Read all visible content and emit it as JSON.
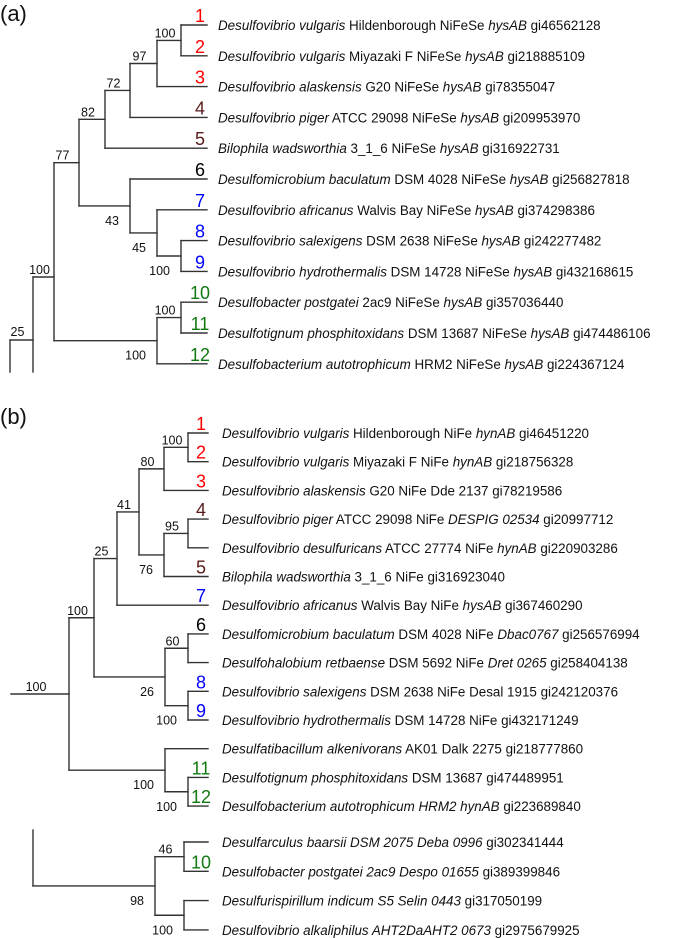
{
  "colors": {
    "red": "#ff0000",
    "brown": "#5a1a1a",
    "blue": "#0000ff",
    "green": "#127812",
    "black": "#000000",
    "branch": "#333333"
  },
  "panels": [
    {
      "label": "(a)",
      "bootstraps": [
        "100",
        "97",
        "72",
        "82",
        "77",
        "43",
        "45",
        "100",
        "100",
        "100",
        "100",
        "25"
      ],
      "leaves": [
        {
          "tag": "1",
          "tag_color": "red",
          "segments": [
            {
              "text": "Desulfovibrio vulgaris",
              "italic": true
            },
            {
              "text": " Hildenborough NiFeSe "
            },
            {
              "text": "hysAB",
              "italic": true
            },
            {
              "text": " gi46562128"
            }
          ]
        },
        {
          "tag": "2",
          "tag_color": "red",
          "segments": [
            {
              "text": "Desulfovibrio vulgaris",
              "italic": true
            },
            {
              "text": " Miyazaki F NiFeSe "
            },
            {
              "text": "hysAB",
              "italic": true
            },
            {
              "text": " gi218885109"
            }
          ]
        },
        {
          "tag": "3",
          "tag_color": "red",
          "segments": [
            {
              "text": "Desulfovibrio alaskensis",
              "italic": true
            },
            {
              "text": " G20 NiFeSe "
            },
            {
              "text": "hysAB",
              "italic": true
            },
            {
              "text": " gi78355047"
            }
          ]
        },
        {
          "tag": "4",
          "tag_color": "brown",
          "segments": [
            {
              "text": "Desulfovibrio piger",
              "italic": true
            },
            {
              "text": " ATCC 29098 NiFeSe "
            },
            {
              "text": "hysAB",
              "italic": true
            },
            {
              "text": " gi209953970"
            }
          ]
        },
        {
          "tag": "5",
          "tag_color": "brown",
          "segments": [
            {
              "text": "Bilophila wadsworthia",
              "italic": true
            },
            {
              "text": " 3_1_6 NiFeSe "
            },
            {
              "text": "hysAB",
              "italic": true
            },
            {
              "text": " gi316922731"
            }
          ]
        },
        {
          "tag": "6",
          "tag_color": "black",
          "segments": [
            {
              "text": "Desulfomicrobium baculatum",
              "italic": true
            },
            {
              "text": " DSM 4028 NiFeSe "
            },
            {
              "text": "hysAB",
              "italic": true
            },
            {
              "text": " gi256827818"
            }
          ]
        },
        {
          "tag": "7",
          "tag_color": "blue",
          "segments": [
            {
              "text": "Desulfovibrio africanus",
              "italic": true
            },
            {
              "text": " Walvis Bay NiFeSe "
            },
            {
              "text": "hysAB",
              "italic": true
            },
            {
              "text": " gi374298386"
            }
          ]
        },
        {
          "tag": "8",
          "tag_color": "blue",
          "segments": [
            {
              "text": "Desulfovibrio salexigens",
              "italic": true
            },
            {
              "text": " DSM 2638 NiFeSe "
            },
            {
              "text": "hysAB",
              "italic": true
            },
            {
              "text": " gi242277482"
            }
          ]
        },
        {
          "tag": "9",
          "tag_color": "blue",
          "segments": [
            {
              "text": "Desulfovibrio hydrothermalis",
              "italic": true
            },
            {
              "text": " DSM 14728 NiFeSe "
            },
            {
              "text": "hysAB",
              "italic": true
            },
            {
              "text": " gi432168615"
            }
          ]
        },
        {
          "tag": "10",
          "tag_color": "green",
          "segments": [
            {
              "text": "Desulfobacter postgatei",
              "italic": true
            },
            {
              "text": " 2ac9 NiFeSe "
            },
            {
              "text": "hysAB",
              "italic": true
            },
            {
              "text": " gi357036440"
            }
          ]
        },
        {
          "tag": "11",
          "tag_color": "green",
          "segments": [
            {
              "text": "Desulfotignum phosphitoxidans",
              "italic": true
            },
            {
              "text": " DSM 13687 NiFeSe "
            },
            {
              "text": "hysAB",
              "italic": true
            },
            {
              "text": " gi474486106"
            }
          ]
        },
        {
          "tag": "12",
          "tag_color": "green",
          "segments": [
            {
              "text": "Desulfobacterium autotrophicum",
              "italic": true
            },
            {
              "text": " HRM2 NiFeSe "
            },
            {
              "text": "hysAB",
              "italic": true
            },
            {
              "text": " gi224367124"
            }
          ]
        }
      ]
    },
    {
      "label": "(b)",
      "bootstraps": [
        "100",
        "80",
        "41",
        "25",
        "100",
        "95",
        "76",
        "60",
        "26",
        "100",
        "100",
        "100",
        "100",
        "46",
        "98",
        "100"
      ],
      "leaves": [
        {
          "tag": "1",
          "tag_color": "red",
          "segments": [
            {
              "text": "Desulfovibrio vulgaris",
              "italic": true
            },
            {
              "text": " Hildenborough NiFe "
            },
            {
              "text": "hynAB",
              "italic": true
            },
            {
              "text": " gi46451220"
            }
          ]
        },
        {
          "tag": "2",
          "tag_color": "red",
          "segments": [
            {
              "text": "Desulfovibrio vulgaris",
              "italic": true
            },
            {
              "text": " Miyazaki F NiFe "
            },
            {
              "text": "hynAB",
              "italic": true
            },
            {
              "text": " gi218756328"
            }
          ]
        },
        {
          "tag": "3",
          "tag_color": "red",
          "segments": [
            {
              "text": "Desulfovibrio alaskensis",
              "italic": true
            },
            {
              "text": " G20 NiFe Dde 2137 gi78219586"
            }
          ]
        },
        {
          "tag": "4",
          "tag_color": "brown",
          "segments": [
            {
              "text": "Desulfovibrio piger",
              "italic": true
            },
            {
              "text": " ATCC 29098 NiFe "
            },
            {
              "text": "DESPIG 02534",
              "italic": true
            },
            {
              "text": " gi20997712"
            }
          ]
        },
        {
          "tag": "",
          "tag_color": "black",
          "segments": [
            {
              "text": "Desulfovibrio desulfuricans",
              "italic": true
            },
            {
              "text": " ATCC 27774 NiFe "
            },
            {
              "text": "hynAB",
              "italic": true
            },
            {
              "text": " gi220903286"
            }
          ]
        },
        {
          "tag": "5",
          "tag_color": "brown",
          "segments": [
            {
              "text": "Bilophila wadsworthia",
              "italic": true
            },
            {
              "text": " 3_1_6 NiFe gi316923040"
            }
          ]
        },
        {
          "tag": "7",
          "tag_color": "blue",
          "segments": [
            {
              "text": "Desulfovibrio africanus",
              "italic": true
            },
            {
              "text": " Walvis Bay NiFe "
            },
            {
              "text": "hysAB",
              "italic": true
            },
            {
              "text": " gi367460290"
            }
          ]
        },
        {
          "tag": "6",
          "tag_color": "black",
          "segments": [
            {
              "text": "Desulfomicrobium baculatum",
              "italic": true
            },
            {
              "text": " DSM 4028 NiFe "
            },
            {
              "text": "Dbac0767",
              "italic": true
            },
            {
              "text": " gi256576994"
            }
          ]
        },
        {
          "tag": "",
          "tag_color": "black",
          "segments": [
            {
              "text": "Desulfohalobium retbaense",
              "italic": true
            },
            {
              "text": " DSM 5692 NiFe "
            },
            {
              "text": "Dret 0265",
              "italic": true
            },
            {
              "text": " gi258404138"
            }
          ]
        },
        {
          "tag": "8",
          "tag_color": "blue",
          "segments": [
            {
              "text": "Desulfovibrio salexigens",
              "italic": true
            },
            {
              "text": " DSM 2638 NiFe Desal 1915 gi242120376"
            }
          ]
        },
        {
          "tag": "9",
          "tag_color": "blue",
          "segments": [
            {
              "text": "Desulfovibrio hydrothermalis",
              "italic": true
            },
            {
              "text": " DSM 14728 NiFe gi432171249"
            }
          ]
        },
        {
          "tag": "",
          "tag_color": "black",
          "segments": [
            {
              "text": "Desulfatibacillum alkenivorans",
              "italic": true
            },
            {
              "text": " AK01 Dalk 2275 gi218777860"
            }
          ]
        },
        {
          "tag": "11",
          "tag_color": "green",
          "segments": [
            {
              "text": "Desulfotignum phosphitoxidans",
              "italic": true
            },
            {
              "text": " DSM 13687 gi474489951"
            }
          ]
        },
        {
          "tag": "12",
          "tag_color": "green",
          "segments": [
            {
              "text": "Desulfobacterium autotrophicum HRM2 hynAB",
              "italic": true
            },
            {
              "text": " gi223689840"
            }
          ]
        },
        {
          "tag": "",
          "tag_color": "black",
          "segments": [
            {
              "text": "Desulfarculus baarsii DSM 2075 Deba 0996",
              "italic": true
            },
            {
              "text": " gi302341444"
            }
          ]
        },
        {
          "tag": "10",
          "tag_color": "green",
          "segments": [
            {
              "text": "Desulfobacter postgatei 2ac9 Despo 01655",
              "italic": true
            },
            {
              "text": " gi389399846"
            }
          ]
        },
        {
          "tag": "",
          "tag_color": "black",
          "segments": [
            {
              "text": "Desulfurispirillum indicum S5 Selin 0443",
              "italic": true
            },
            {
              "text": " gi317050199"
            }
          ]
        },
        {
          "tag": "",
          "tag_color": "black",
          "segments": [
            {
              "text": "Desulfovibrio alkaliphilus AHT2DaAHT2 0673",
              "italic": true
            },
            {
              "text": " gi2975679925"
            }
          ]
        }
      ]
    }
  ]
}
